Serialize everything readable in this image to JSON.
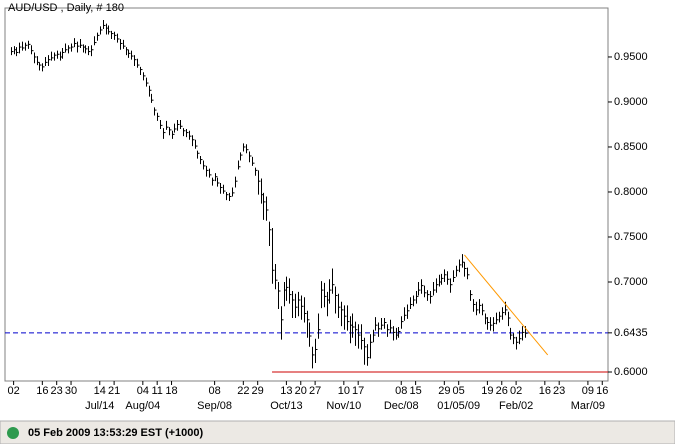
{
  "chart_data": {
    "type": "hlc",
    "title": "AUD/USD , Daily, # 180",
    "color": "#000000",
    "xlim": [
      "2008-05-28",
      "2009-03-18"
    ],
    "ylim": [
      0.59,
      1.0044
    ],
    "yticks": [
      {
        "value": 0.6,
        "label": "0.6000"
      },
      {
        "value": 0.7,
        "label": "0.7000"
      },
      {
        "value": 0.75,
        "label": "0.7500"
      },
      {
        "value": 0.8,
        "label": "0.8000"
      },
      {
        "value": 0.85,
        "label": "0.8500"
      },
      {
        "value": 0.9,
        "label": "0.9000"
      },
      {
        "value": 0.95,
        "label": "0.9500"
      }
    ],
    "xticks": [
      {
        "value": "2008-06-02",
        "label": "02"
      },
      {
        "value": "2008-06-16",
        "label": "16"
      },
      {
        "value": "2008-06-23",
        "label": "23"
      },
      {
        "value": "2008-06-30",
        "label": "30"
      },
      {
        "value": "2008-07-14",
        "label": "14"
      },
      {
        "value": "2008-07-21",
        "label": "21"
      },
      {
        "value": "2008-08-04",
        "label": "04"
      },
      {
        "value": "2008-08-11",
        "label": "11"
      },
      {
        "value": "2008-08-18",
        "label": "18"
      },
      {
        "value": "2008-09-08",
        "label": "08"
      },
      {
        "value": "2008-09-22",
        "label": "22"
      },
      {
        "value": "2008-09-29",
        "label": "29"
      },
      {
        "value": "2008-10-13",
        "label": "13"
      },
      {
        "value": "2008-10-20",
        "label": "20"
      },
      {
        "value": "2008-10-27",
        "label": "27"
      },
      {
        "value": "2008-11-10",
        "label": "10"
      },
      {
        "value": "2008-11-17",
        "label": "17"
      },
      {
        "value": "2008-12-08",
        "label": "08"
      },
      {
        "value": "2008-12-15",
        "label": "15"
      },
      {
        "value": "2008-12-29",
        "label": "29"
      },
      {
        "value": "2009-01-05",
        "label": "05"
      },
      {
        "value": "2009-01-19",
        "label": "19"
      },
      {
        "value": "2009-01-26",
        "label": "26"
      },
      {
        "value": "2009-02-02",
        "label": "02"
      },
      {
        "value": "2009-02-16",
        "label": "16"
      },
      {
        "value": "2009-02-23",
        "label": "23"
      },
      {
        "value": "2009-03-09",
        "label": "09"
      },
      {
        "value": "2009-03-16",
        "label": "16"
      }
    ],
    "xticks_month": [
      {
        "value": "2008-07-14",
        "label": "Jul/14"
      },
      {
        "value": "2008-08-04",
        "label": "Aug/04"
      },
      {
        "value": "2008-09-08",
        "label": "Sep/08"
      },
      {
        "value": "2008-10-13",
        "label": "Oct/13"
      },
      {
        "value": "2008-11-10",
        "label": "Nov/10"
      },
      {
        "value": "2008-12-08",
        "label": "Dec/08"
      },
      {
        "value": "2009-01-05",
        "label": "01/05/09"
      },
      {
        "value": "2009-02-02",
        "label": "Feb/02"
      },
      {
        "value": "2009-03-09",
        "label": "Mar/09"
      }
    ],
    "x": [
      "2008-05-30",
      "2008-06-02",
      "2008-06-03",
      "2008-06-04",
      "2008-06-05",
      "2008-06-06",
      "2008-06-09",
      "2008-06-10",
      "2008-06-11",
      "2008-06-12",
      "2008-06-13",
      "2008-06-16",
      "2008-06-17",
      "2008-06-18",
      "2008-06-19",
      "2008-06-20",
      "2008-06-23",
      "2008-06-24",
      "2008-06-25",
      "2008-06-26",
      "2008-06-27",
      "2008-06-30",
      "2008-07-01",
      "2008-07-02",
      "2008-07-03",
      "2008-07-04",
      "2008-07-07",
      "2008-07-08",
      "2008-07-09",
      "2008-07-10",
      "2008-07-11",
      "2008-07-14",
      "2008-07-15",
      "2008-07-16",
      "2008-07-17",
      "2008-07-18",
      "2008-07-21",
      "2008-07-22",
      "2008-07-23",
      "2008-07-24",
      "2008-07-25",
      "2008-07-28",
      "2008-07-29",
      "2008-07-30",
      "2008-07-31",
      "2008-08-01",
      "2008-08-04",
      "2008-08-05",
      "2008-08-06",
      "2008-08-07",
      "2008-08-08",
      "2008-08-11",
      "2008-08-12",
      "2008-08-13",
      "2008-08-14",
      "2008-08-15",
      "2008-08-18",
      "2008-08-19",
      "2008-08-20",
      "2008-08-21",
      "2008-08-22",
      "2008-08-25",
      "2008-08-26",
      "2008-08-27",
      "2008-08-28",
      "2008-08-29",
      "2008-09-01",
      "2008-09-02",
      "2008-09-03",
      "2008-09-04",
      "2008-09-05",
      "2008-09-08",
      "2008-09-09",
      "2008-09-10",
      "2008-09-11",
      "2008-09-12",
      "2008-09-15",
      "2008-09-16",
      "2008-09-17",
      "2008-09-18",
      "2008-09-19",
      "2008-09-22",
      "2008-09-23",
      "2008-09-24",
      "2008-09-25",
      "2008-09-26",
      "2008-09-29",
      "2008-09-30",
      "2008-10-01",
      "2008-10-02",
      "2008-10-03",
      "2008-10-06",
      "2008-10-07",
      "2008-10-08",
      "2008-10-09",
      "2008-10-10",
      "2008-10-13",
      "2008-10-14",
      "2008-10-15",
      "2008-10-16",
      "2008-10-17",
      "2008-10-20",
      "2008-10-21",
      "2008-10-22",
      "2008-10-23",
      "2008-10-24",
      "2008-10-27",
      "2008-10-28",
      "2008-10-29",
      "2008-10-30",
      "2008-10-31",
      "2008-11-03",
      "2008-11-04",
      "2008-11-05",
      "2008-11-06",
      "2008-11-07",
      "2008-11-10",
      "2008-11-11",
      "2008-11-12",
      "2008-11-13",
      "2008-11-14",
      "2008-11-17",
      "2008-11-18",
      "2008-11-19",
      "2008-11-20",
      "2008-11-21",
      "2008-11-24",
      "2008-11-25",
      "2008-11-26",
      "2008-11-27",
      "2008-11-28",
      "2008-12-01",
      "2008-12-02",
      "2008-12-03",
      "2008-12-04",
      "2008-12-05",
      "2008-12-08",
      "2008-12-09",
      "2008-12-10",
      "2008-12-11",
      "2008-12-12",
      "2008-12-15",
      "2008-12-16",
      "2008-12-17",
      "2008-12-18",
      "2008-12-19",
      "2008-12-22",
      "2008-12-23",
      "2008-12-24",
      "2008-12-25",
      "2008-12-26",
      "2008-12-29",
      "2008-12-30",
      "2008-12-31",
      "2009-01-01",
      "2009-01-02",
      "2009-01-05",
      "2009-01-06",
      "2009-01-07",
      "2009-01-08",
      "2009-01-09",
      "2009-01-12",
      "2009-01-13",
      "2009-01-14",
      "2009-01-15",
      "2009-01-16",
      "2009-01-19",
      "2009-01-20",
      "2009-01-21",
      "2009-01-22",
      "2009-01-23",
      "2009-01-26",
      "2009-01-27",
      "2009-01-28",
      "2009-01-29",
      "2009-01-30",
      "2009-02-02",
      "2009-02-03",
      "2009-02-04",
      "2009-02-05"
    ],
    "high": [
      0.961,
      0.962,
      0.961,
      0.966,
      0.967,
      0.966,
      0.968,
      0.963,
      0.955,
      0.951,
      0.944,
      0.943,
      0.95,
      0.952,
      0.956,
      0.955,
      0.957,
      0.956,
      0.96,
      0.965,
      0.963,
      0.965,
      0.971,
      0.967,
      0.97,
      0.964,
      0.963,
      0.962,
      0.963,
      0.973,
      0.977,
      0.984,
      0.991,
      0.987,
      0.985,
      0.979,
      0.978,
      0.976,
      0.97,
      0.969,
      0.961,
      0.958,
      0.957,
      0.952,
      0.948,
      0.939,
      0.933,
      0.927,
      0.918,
      0.909,
      0.894,
      0.888,
      0.88,
      0.871,
      0.879,
      0.872,
      0.868,
      0.876,
      0.88,
      0.88,
      0.871,
      0.87,
      0.868,
      0.863,
      0.858,
      0.846,
      0.84,
      0.835,
      0.829,
      0.826,
      0.816,
      0.821,
      0.816,
      0.81,
      0.808,
      0.8,
      0.799,
      0.805,
      0.817,
      0.835,
      0.844,
      0.854,
      0.853,
      0.845,
      0.839,
      0.827,
      0.824,
      0.815,
      0.799,
      0.795,
      0.767,
      0.76,
      0.72,
      0.7,
      0.673,
      0.7,
      0.706,
      0.704,
      0.69,
      0.687,
      0.689,
      0.685,
      0.683,
      0.668,
      0.655,
      0.628,
      0.637,
      0.665,
      0.701,
      0.699,
      0.689,
      0.703,
      0.715,
      0.695,
      0.687,
      0.678,
      0.674,
      0.674,
      0.662,
      0.665,
      0.656,
      0.653,
      0.653,
      0.638,
      0.631,
      0.642,
      0.647,
      0.661,
      0.655,
      0.66,
      0.66,
      0.653,
      0.658,
      0.651,
      0.649,
      0.65,
      0.662,
      0.672,
      0.675,
      0.683,
      0.685,
      0.69,
      0.7,
      0.703,
      0.696,
      0.691,
      0.69,
      0.7,
      0.704,
      0.708,
      0.709,
      0.714,
      0.712,
      0.704,
      0.713,
      0.718,
      0.725,
      0.731,
      0.722,
      0.716,
      0.691,
      0.681,
      0.678,
      0.681,
      0.676,
      0.665,
      0.661,
      0.661,
      0.661,
      0.666,
      0.667,
      0.672,
      0.678,
      0.667,
      0.649,
      0.643,
      0.639,
      0.646,
      0.651,
      0.651
    ],
    "low": [
      0.952,
      0.953,
      0.951,
      0.954,
      0.957,
      0.957,
      0.959,
      0.953,
      0.943,
      0.941,
      0.935,
      0.934,
      0.94,
      0.94,
      0.946,
      0.946,
      0.948,
      0.946,
      0.948,
      0.955,
      0.954,
      0.956,
      0.961,
      0.955,
      0.96,
      0.955,
      0.954,
      0.952,
      0.951,
      0.963,
      0.968,
      0.975,
      0.981,
      0.975,
      0.975,
      0.97,
      0.969,
      0.966,
      0.958,
      0.959,
      0.952,
      0.949,
      0.947,
      0.94,
      0.938,
      0.93,
      0.924,
      0.917,
      0.906,
      0.899,
      0.885,
      0.879,
      0.87,
      0.859,
      0.869,
      0.863,
      0.859,
      0.866,
      0.868,
      0.87,
      0.862,
      0.861,
      0.858,
      0.851,
      0.848,
      0.837,
      0.831,
      0.825,
      0.817,
      0.816,
      0.807,
      0.812,
      0.806,
      0.798,
      0.798,
      0.791,
      0.79,
      0.795,
      0.805,
      0.825,
      0.835,
      0.845,
      0.843,
      0.833,
      0.829,
      0.818,
      0.797,
      0.787,
      0.769,
      0.768,
      0.74,
      0.698,
      0.692,
      0.67,
      0.636,
      0.673,
      0.679,
      0.676,
      0.66,
      0.66,
      0.662,
      0.658,
      0.655,
      0.638,
      0.628,
      0.604,
      0.61,
      0.637,
      0.671,
      0.672,
      0.662,
      0.676,
      0.687,
      0.665,
      0.66,
      0.651,
      0.647,
      0.646,
      0.632,
      0.638,
      0.629,
      0.626,
      0.625,
      0.608,
      0.607,
      0.615,
      0.633,
      0.646,
      0.639,
      0.647,
      0.648,
      0.639,
      0.643,
      0.635,
      0.636,
      0.638,
      0.648,
      0.657,
      0.659,
      0.67,
      0.673,
      0.676,
      0.685,
      0.687,
      0.683,
      0.679,
      0.676,
      0.685,
      0.688,
      0.695,
      0.697,
      0.7,
      0.697,
      0.688,
      0.7,
      0.706,
      0.711,
      0.716,
      0.706,
      0.703,
      0.679,
      0.667,
      0.663,
      0.665,
      0.663,
      0.653,
      0.647,
      0.646,
      0.645,
      0.653,
      0.655,
      0.658,
      0.663,
      0.651,
      0.636,
      0.631,
      0.625,
      0.631,
      0.635,
      0.638
    ],
    "close": [
      0.956,
      0.958,
      0.955,
      0.961,
      0.96,
      0.963,
      0.964,
      0.957,
      0.95,
      0.944,
      0.941,
      0.939,
      0.944,
      0.947,
      0.949,
      0.952,
      0.953,
      0.95,
      0.955,
      0.958,
      0.96,
      0.961,
      0.965,
      0.962,
      0.963,
      0.961,
      0.959,
      0.956,
      0.958,
      0.966,
      0.974,
      0.98,
      0.985,
      0.982,
      0.978,
      0.976,
      0.974,
      0.97,
      0.965,
      0.962,
      0.958,
      0.954,
      0.951,
      0.947,
      0.941,
      0.936,
      0.929,
      0.921,
      0.913,
      0.902,
      0.891,
      0.884,
      0.874,
      0.866,
      0.872,
      0.869,
      0.864,
      0.87,
      0.875,
      0.873,
      0.868,
      0.866,
      0.862,
      0.858,
      0.851,
      0.843,
      0.836,
      0.829,
      0.824,
      0.819,
      0.813,
      0.817,
      0.81,
      0.805,
      0.801,
      0.797,
      0.795,
      0.799,
      0.812,
      0.828,
      0.841,
      0.85,
      0.847,
      0.84,
      0.832,
      0.824,
      0.812,
      0.797,
      0.789,
      0.78,
      0.758,
      0.713,
      0.702,
      0.69,
      0.658,
      0.691,
      0.694,
      0.686,
      0.68,
      0.672,
      0.68,
      0.673,
      0.665,
      0.658,
      0.64,
      0.619,
      0.625,
      0.647,
      0.691,
      0.684,
      0.68,
      0.691,
      0.697,
      0.685,
      0.672,
      0.669,
      0.662,
      0.656,
      0.652,
      0.65,
      0.647,
      0.641,
      0.635,
      0.628,
      0.616,
      0.633,
      0.641,
      0.652,
      0.648,
      0.652,
      0.655,
      0.647,
      0.649,
      0.644,
      0.641,
      0.645,
      0.656,
      0.663,
      0.668,
      0.675,
      0.68,
      0.684,
      0.691,
      0.696,
      0.688,
      0.686,
      0.684,
      0.691,
      0.697,
      0.7,
      0.704,
      0.708,
      0.703,
      0.697,
      0.705,
      0.713,
      0.719,
      0.722,
      0.715,
      0.708,
      0.686,
      0.675,
      0.669,
      0.674,
      0.668,
      0.66,
      0.655,
      0.652,
      0.654,
      0.658,
      0.662,
      0.666,
      0.669,
      0.66,
      0.641,
      0.638,
      0.633,
      0.637,
      0.644,
      0.643
    ],
    "hlines": [
      {
        "value": 0.6435,
        "label": "0.6435",
        "color": "#0000cc",
        "style": "dashed"
      },
      {
        "value": 0.6,
        "color": "#cc0000",
        "start": "2008-10-06"
      }
    ],
    "trendline": {
      "x": [
        "2009-01-07",
        "2009-02-17"
      ],
      "y": [
        0.73,
        0.619
      ],
      "color": "#ff9900"
    }
  },
  "status": {
    "text": "05 Feb 2009 13:53:29 EST (+1000)",
    "indicator_color": "#2e9a4e"
  }
}
